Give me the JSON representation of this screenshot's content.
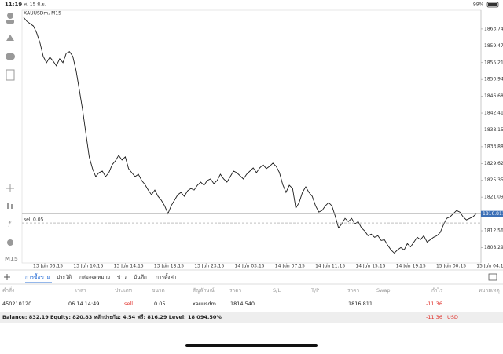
{
  "status_bar": {
    "time": "11:19",
    "date": "พ. 15 มิ.ย.",
    "battery": "99%"
  },
  "chart_data": {
    "type": "line",
    "title": "XAUUSDm, M15",
    "color": "#1a1a1a",
    "values": [
      1866.7,
      1865.7,
      1865.1,
      1864.5,
      1862.7,
      1860.2,
      1856.8,
      1855.2,
      1856.6,
      1855.6,
      1854.4,
      1856.2,
      1855.2,
      1857.6,
      1858.0,
      1856.8,
      1853.2,
      1848.2,
      1843.2,
      1837.2,
      1831.3,
      1828.3,
      1826.3,
      1827.3,
      1827.7,
      1826.3,
      1827.3,
      1829.3,
      1830.3,
      1831.7,
      1830.5,
      1831.3,
      1828.3,
      1827.3,
      1826.3,
      1826.9,
      1825.3,
      1824.3,
      1822.9,
      1821.7,
      1822.9,
      1821.3,
      1820.3,
      1818.9,
      1816.9,
      1818.9,
      1820.3,
      1821.7,
      1822.3,
      1821.3,
      1822.7,
      1823.3,
      1822.9,
      1824.1,
      1824.9,
      1824.1,
      1825.3,
      1825.7,
      1824.5,
      1825.3,
      1826.9,
      1825.7,
      1824.9,
      1826.3,
      1827.7,
      1827.3,
      1826.5,
      1825.7,
      1826.9,
      1827.7,
      1828.5,
      1827.3,
      1828.5,
      1829.3,
      1828.3,
      1828.9,
      1829.7,
      1828.9,
      1827.3,
      1824.3,
      1822.3,
      1824.1,
      1823.3,
      1818.3,
      1819.7,
      1822.3,
      1823.7,
      1822.3,
      1821.3,
      1818.9,
      1817.3,
      1817.7,
      1818.9,
      1819.7,
      1818.9,
      1816.3,
      1813.3,
      1814.3,
      1815.7,
      1814.9,
      1815.7,
      1814.3,
      1814.9,
      1813.3,
      1812.5,
      1811.3,
      1811.7,
      1810.9,
      1811.3,
      1810.1,
      1810.3,
      1808.9,
      1807.7,
      1806.9,
      1807.7,
      1808.3,
      1807.7,
      1809.3,
      1808.5,
      1809.7,
      1810.9,
      1810.3,
      1811.3,
      1809.7,
      1810.3,
      1810.9,
      1811.3,
      1812.1,
      1814.1,
      1815.7,
      1816.1,
      1816.9,
      1817.7,
      1817.3,
      1816.1,
      1815.3,
      1815.7,
      1816.1,
      1816.9
    ],
    "x_labels": [
      "13 Jun 06:15",
      "13 Jun 10:15",
      "13 Jun 14:15",
      "13 Jun 18:15",
      "13 Jun 23:15",
      "14 Jun 03:15",
      "14 Jun 07:15",
      "14 Jun 11:15",
      "14 Jun 15:15",
      "14 Jun 19:15",
      "15 Jun 00:15",
      "15 Jun 04:15"
    ],
    "ylim": [
      1804.4,
      1868.5
    ],
    "yticks": [
      {
        "value": 1863.74,
        "label": "1863.740"
      },
      1859.475,
      {
        "value": 1855.21,
        "label": "1855.210"
      },
      1850.945,
      {
        "value": 1846.68,
        "label": "1846.680"
      },
      1842.415,
      {
        "value": 1838.15,
        "label": "1838.150"
      },
      1833.885,
      {
        "value": 1829.62,
        "label": "1829.620"
      },
      1825.355,
      {
        "value": 1821.09,
        "label": "1821.090"
      },
      {
        "value": 1812.56,
        "label": "1812.560"
      },
      1808.295
    ],
    "current_price": 1816.811,
    "position": {
      "label": "sell 0.05",
      "price": 1814.54
    },
    "timeframe": "M15"
  },
  "tabs": [
    "การซื้อขาย",
    "ประวัติ",
    "กล่องจดหมาย",
    "ข่าว",
    "บันทึก",
    "การตั้งค่า"
  ],
  "table": {
    "columns": [
      "คำสั่ง",
      "เวลา",
      "ประเภท",
      "ขนาด",
      "สัญลักษณ์",
      "ราคา",
      "S/L",
      "T/P",
      "ราคา",
      "Swap",
      "กำไร",
      "หมายเหตุ"
    ],
    "rows": [
      [
        "450210120",
        "06.14 14:49",
        "sell",
        "0.05",
        "xauusdm",
        "1814.540",
        null,
        null,
        "1816.811",
        null,
        "-11.36",
        null
      ]
    ]
  },
  "summary": {
    "text": "Balance: 832.19 Equity: 820.83 หลักประกัน: 4.54 ฟรี: 816.29 Level: 18 094.50%",
    "profit": "-11.36",
    "currency": "USD"
  }
}
